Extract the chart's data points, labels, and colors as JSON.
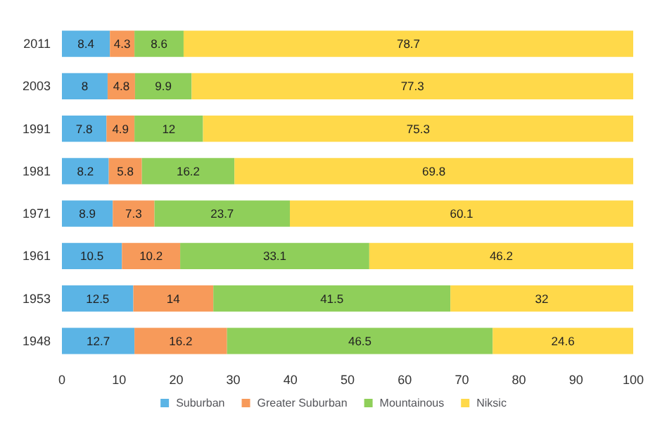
{
  "chart_data": {
    "type": "bar",
    "orientation": "horizontal",
    "stacked": true,
    "categories": [
      "2011",
      "2003",
      "1991",
      "1981",
      "1971",
      "1961",
      "1953",
      "1948"
    ],
    "series": [
      {
        "name": "Suburban",
        "color": "#5bb4e5",
        "values": [
          8.4,
          8,
          7.8,
          8.2,
          8.9,
          10.5,
          12.5,
          12.7
        ]
      },
      {
        "name": "Greater Suburban",
        "color": "#f79a5a",
        "values": [
          4.3,
          4.8,
          4.9,
          5.8,
          7.3,
          10.2,
          14,
          16.2
        ]
      },
      {
        "name": "Mountainous",
        "color": "#8fcf5a",
        "values": [
          8.6,
          9.9,
          12,
          16.2,
          23.7,
          33.1,
          41.5,
          46.5
        ]
      },
      {
        "name": "Niksic",
        "color": "#ffd94a",
        "values": [
          78.7,
          77.3,
          75.3,
          69.8,
          60.1,
          46.2,
          32,
          24.6
        ]
      }
    ],
    "xlim": [
      0,
      100
    ],
    "xticks": [
      0,
      10,
      20,
      30,
      40,
      50,
      60,
      70,
      80,
      90,
      100
    ],
    "data_labels": true,
    "legend": "bottom",
    "grid": false
  }
}
